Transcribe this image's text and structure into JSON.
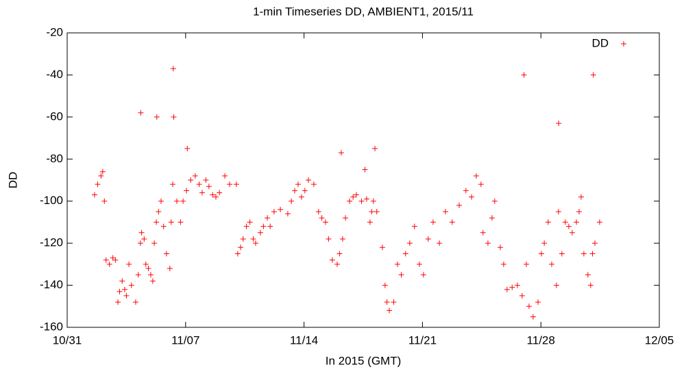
{
  "chart_data": {
    "type": "scatter",
    "title": "1-min Timeseries DD, AMBIENT1, 2015/11",
    "x_label": "In 2015 (GMT)",
    "y_label": "DD",
    "xlim": [
      0,
      35
    ],
    "xticks": [
      {
        "value": 0,
        "label": "10/31"
      },
      {
        "value": 7,
        "label": "11/07"
      },
      {
        "value": 14,
        "label": "11/14"
      },
      {
        "value": 21,
        "label": "11/21"
      },
      {
        "value": 28,
        "label": "11/28"
      },
      {
        "value": 35,
        "label": "12/05"
      }
    ],
    "ylim": [
      -160,
      -20
    ],
    "yticks": [
      -160,
      -140,
      -120,
      -100,
      -80,
      -60,
      -40,
      -20
    ],
    "legend": "top right",
    "x": [
      1.62,
      1.8,
      2.0,
      2.1,
      2.2,
      2.3,
      2.5,
      2.7,
      2.85,
      3.0,
      3.1,
      3.25,
      3.4,
      3.5,
      3.65,
      3.8,
      4.05,
      4.2,
      4.33,
      4.35,
      4.4,
      4.55,
      4.65,
      4.8,
      4.94,
      5.06,
      5.15,
      5.27,
      5.3,
      5.4,
      5.55,
      5.7,
      5.87,
      6.07,
      6.15,
      6.24,
      6.27,
      6.3,
      6.48,
      6.7,
      6.85,
      7.05,
      7.1,
      7.3,
      7.57,
      7.8,
      7.98,
      8.2,
      8.38,
      8.6,
      8.79,
      9.0,
      9.32,
      9.6,
      10.0,
      10.08,
      10.25,
      10.4,
      10.6,
      10.8,
      11.0,
      11.14,
      11.42,
      11.6,
      11.83,
      12.0,
      12.23,
      12.6,
      13.04,
      13.25,
      13.45,
      13.65,
      13.85,
      14.05,
      14.26,
      14.58,
      14.86,
      15.05,
      15.27,
      15.45,
      15.67,
      15.96,
      16.1,
      16.2,
      16.28,
      16.45,
      16.69,
      16.9,
      17.09,
      17.4,
      17.6,
      17.7,
      17.9,
      18.0,
      18.1,
      18.19,
      18.3,
      18.63,
      18.79,
      18.9,
      19.04,
      19.3,
      19.52,
      19.75,
      20.0,
      20.25,
      20.53,
      20.82,
      21.06,
      21.34,
      21.63,
      22.0,
      22.36,
      22.76,
      23.17,
      23.57,
      23.9,
      24.18,
      24.46,
      24.58,
      24.87,
      25.11,
      25.27,
      25.6,
      25.8,
      26.0,
      26.3,
      26.61,
      26.89,
      27.0,
      27.14,
      27.3,
      27.54,
      27.83,
      28.03,
      28.2,
      28.43,
      28.64,
      28.92,
      29.04,
      29.05,
      29.24,
      29.44,
      29.65,
      29.85,
      30.1,
      30.26,
      30.38,
      30.54,
      30.78,
      30.94,
      31.05,
      31.1,
      31.19,
      31.47
    ],
    "series": [
      {
        "name": "DD",
        "color": "#ff0000",
        "values": [
          -97,
          -92,
          -88,
          -86,
          -100,
          -128,
          -130,
          -127,
          -128,
          -148,
          -143,
          -138,
          -142,
          -145,
          -130,
          -140,
          -148,
          -135,
          -120,
          -58,
          -115,
          -118,
          -130,
          -132,
          -135,
          -138,
          -120,
          -110,
          -60,
          -105,
          -100,
          -112,
          -125,
          -132,
          -110,
          -92,
          -37,
          -60,
          -100,
          -110,
          -100,
          -95,
          -75,
          -90,
          -88,
          -92,
          -96,
          -90,
          -93,
          -97,
          -98,
          -96,
          -88,
          -92,
          -92,
          -125,
          -122,
          -118,
          -112,
          -110,
          -118,
          -120,
          -115,
          -112,
          -108,
          -112,
          -105,
          -104,
          -106,
          -100,
          -95,
          -92,
          -98,
          -95,
          -90,
          -92,
          -105,
          -108,
          -110,
          -118,
          -128,
          -130,
          -125,
          -77,
          -118,
          -108,
          -100,
          -98,
          -97,
          -100,
          -85,
          -99,
          -110,
          -105,
          -100,
          -75,
          -105,
          -122,
          -140,
          -148,
          -152,
          -148,
          -130,
          -135,
          -125,
          -120,
          -112,
          -130,
          -135,
          -118,
          -110,
          -120,
          -105,
          -110,
          -102,
          -95,
          -98,
          -88,
          -92,
          -115,
          -120,
          -108,
          -100,
          -122,
          -130,
          -142,
          -141,
          -140,
          -145,
          -40,
          -130,
          -150,
          -155,
          -148,
          -125,
          -120,
          -110,
          -130,
          -140,
          -105,
          -63,
          -125,
          -110,
          -112,
          -115,
          -110,
          -105,
          -98,
          -125,
          -135,
          -140,
          -125,
          -40,
          -120,
          -110
        ]
      }
    ]
  }
}
